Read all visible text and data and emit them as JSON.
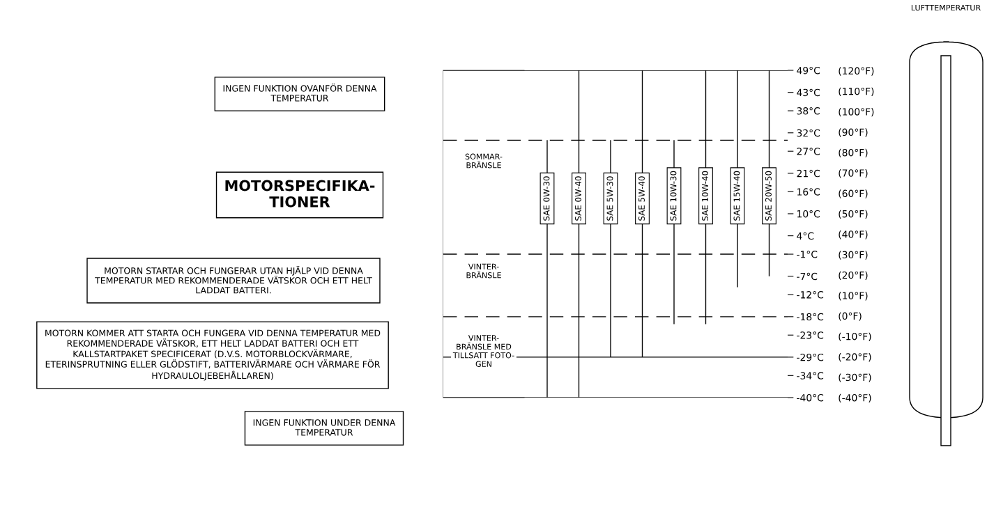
{
  "chart_data": {
    "type": "bar",
    "title": "MOTORSPECIFIKA-\nTIONER",
    "categories": [
      "SAE 0W-30",
      "SAE 0W-40",
      "SAE 5W-30",
      "SAE 5W-40",
      "SAE 10W-30",
      "SAE 10W-40",
      "SAE 15W-40",
      "SAE 20W-50"
    ],
    "base": [
      -40,
      -40,
      -29,
      -29,
      -20,
      -20,
      -10,
      -7
    ],
    "values": [
      70,
      89,
      59,
      78,
      50,
      69,
      59,
      56
    ],
    "color": "#000000",
    "ylim": [
      -40,
      49
    ],
    "yticks": [
      {
        "value": 49,
        "label": "49°C"
      },
      {
        "value": 43,
        "label": "43°C"
      },
      {
        "value": 38,
        "label": "38°C"
      },
      {
        "value": 32,
        "label": "32°C"
      },
      {
        "value": 27,
        "label": "27°C"
      },
      {
        "value": 21,
        "label": "21°C"
      },
      {
        "value": 16,
        "label": "16°C"
      },
      {
        "value": 10,
        "label": "10°C"
      },
      {
        "value": 4,
        "label": "4°C"
      },
      {
        "value": -1,
        "label": "-1°C"
      },
      {
        "value": -7,
        "label": "-7°C"
      },
      {
        "value": -12,
        "label": "-12°C"
      },
      {
        "value": -18,
        "label": "-18°C"
      },
      {
        "value": -23,
        "label": "-23°C"
      },
      {
        "value": -29,
        "label": "-29°C"
      },
      {
        "value": -34,
        "label": "-34°C"
      },
      {
        "value": -40,
        "label": "-40°C"
      }
    ],
    "y2lim": [
      -40,
      120.2
    ],
    "y2ticks": [
      {
        "value": 120,
        "label": "(120°F)"
      },
      {
        "value": 110,
        "label": "(110°F)"
      },
      {
        "value": 100,
        "label": "(100°F)"
      },
      {
        "value": 90,
        "label": "(90°F)"
      },
      {
        "value": 80,
        "label": "(80°F)"
      },
      {
        "value": 70,
        "label": "(70°F)"
      },
      {
        "value": 60,
        "label": "(60°F)"
      },
      {
        "value": 50,
        "label": "(50°F)"
      },
      {
        "value": 40,
        "label": "(40°F)"
      },
      {
        "value": 30,
        "label": "(30°F)"
      },
      {
        "value": 20,
        "label": "(20°F)"
      },
      {
        "value": 10,
        "label": "(10°F)"
      },
      {
        "value": 0,
        "label": "(0°F)"
      },
      {
        "value": -10,
        "label": "(-10°F)"
      },
      {
        "value": -20,
        "label": "(-20°F)"
      },
      {
        "value": -30,
        "label": "(-30°F)"
      },
      {
        "value": -40,
        "label": "(-40°F)"
      }
    ],
    "grid": false,
    "ref_lines": [
      {
        "axis": "y",
        "value": 49,
        "line_style": "solid"
      },
      {
        "axis": "y",
        "value": 30,
        "line_style": "dashed"
      },
      {
        "axis": "y",
        "value": -1,
        "line_style": "dashed"
      },
      {
        "axis": "y",
        "value": -18,
        "line_style": "dashed"
      },
      {
        "axis": "y",
        "value": -29,
        "line_style": "solid"
      },
      {
        "axis": "y",
        "value": -40,
        "line_style": "solid"
      }
    ],
    "annotations": [
      "LUFTTEMPERATUR",
      "SOMMAR-\nBRÄNSLE",
      "VINTER-\nBRÄNSLE",
      "VINTER-\nBRÄNSLE MED\nTILLSATT FOTO-\nGEN",
      "INGEN FUNKTION OVANFÖR DENNA\nTEMPERATUR",
      "MOTORN STARTAR OCH FUNGERAR UTAN HJÄLP VID DENNA\nTEMPERATUR MED REKOMMENDERADE VÄTSKOR OCH ETT HELT\nLADDAT BATTERI.",
      "MOTORN KOMMER ATT STARTA OCH FUNGERA VID DENNA TEMPERATUR MED\nREKOMMENDERADE VÄTSKOR, ETT HELT LADDAT BATTERI OCH ETT\nKALLSTARTPAKET SPECIFICERAT (D.V.S. MOTORBLOCKVÄRMARE,\nETERINSPRUTNING ELLER GLÖDSTIFT, BATTERIVÄRMARE OCH VÄRMARE FÖR\nHYDRAULOLJEBEHÅLLAREN)",
      "INGEN FUNKTION UNDER DENNA\nTEMPERATUR"
    ]
  }
}
